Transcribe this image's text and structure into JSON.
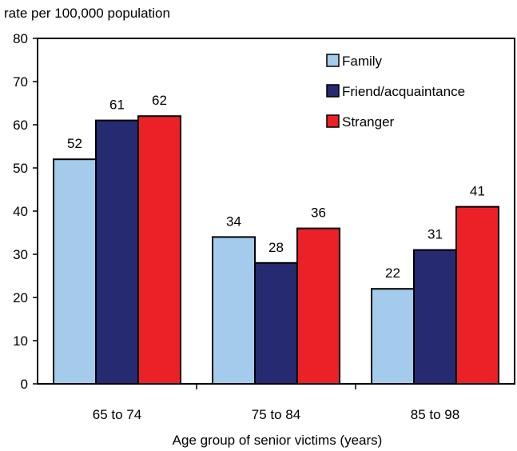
{
  "chart_data": {
    "type": "bar",
    "title": "",
    "ylabel": "rate per 100,000 population",
    "xlabel": "Age group of senior victims (years)",
    "categories": [
      "65 to 74",
      "75 to 84",
      "85 to 98"
    ],
    "series": [
      {
        "name": "Family",
        "values": [
          52,
          34,
          22
        ],
        "color": "#a4cbec"
      },
      {
        "name": "Friend/acquaintance",
        "values": [
          61,
          28,
          31
        ],
        "color": "#262a71"
      },
      {
        "name": "Stranger",
        "values": [
          62,
          36,
          41
        ],
        "color": "#ec2027"
      }
    ],
    "ylim": [
      0,
      80
    ],
    "yticks": [
      0,
      10,
      20,
      30,
      40,
      50,
      60,
      70,
      80
    ],
    "grid": false,
    "legend": "top-right",
    "data_labels": true
  }
}
